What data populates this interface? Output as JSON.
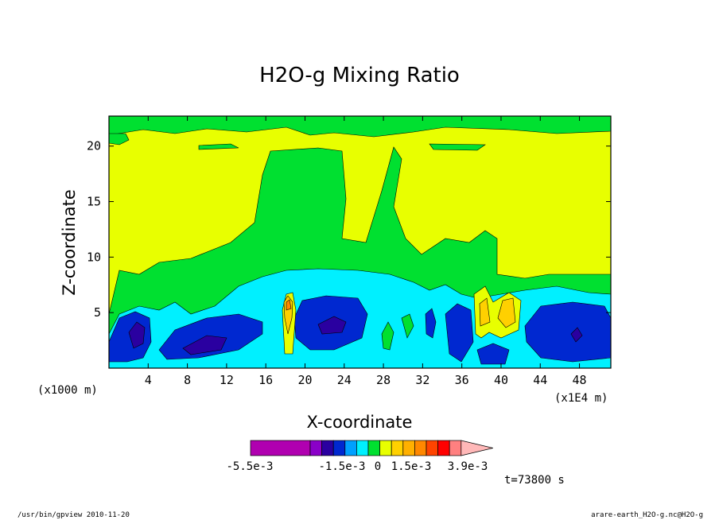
{
  "chart_data": {
    "type": "heatmap",
    "title": "H2O-g Mixing Ratio",
    "xlabel": "X-coordinate",
    "ylabel": "Z-coordinate",
    "x_unit_left": "(x1000 m)",
    "x_unit_right": "(x1E4 m)",
    "x_ticks": [
      "4",
      "8",
      "12",
      "16",
      "20",
      "24",
      "28",
      "32",
      "36",
      "40",
      "44",
      "48"
    ],
    "x_tick_values": [
      4,
      8,
      12,
      16,
      20,
      24,
      28,
      32,
      36,
      40,
      44,
      48
    ],
    "y_ticks": [
      "5",
      "10",
      "15",
      "20"
    ],
    "y_tick_values": [
      5,
      10,
      15,
      20
    ],
    "xlim": [
      0,
      51.2
    ],
    "ylim": [
      0,
      22.7
    ],
    "colorbar": {
      "colors": [
        "#b000b0",
        "#8a00c8",
        "#2a00a0",
        "#0028d0",
        "#00a0ff",
        "#00f0ff",
        "#00e030",
        "#e8ff00",
        "#ffd000",
        "#ffb000",
        "#ff8800",
        "#ff4400",
        "#ff0000",
        "#ff8080",
        "#ffb8b8"
      ],
      "labels": [
        "-5.5e-3",
        "-1.5e-3",
        "0",
        "1.5e-3",
        "3.9e-3"
      ]
    },
    "time_label": "t=73800 s"
  },
  "footer": {
    "left": "/usr/bin/gpview   2010-11-20",
    "right": "arare-earth_H2O-g.nc@H2O-g"
  }
}
